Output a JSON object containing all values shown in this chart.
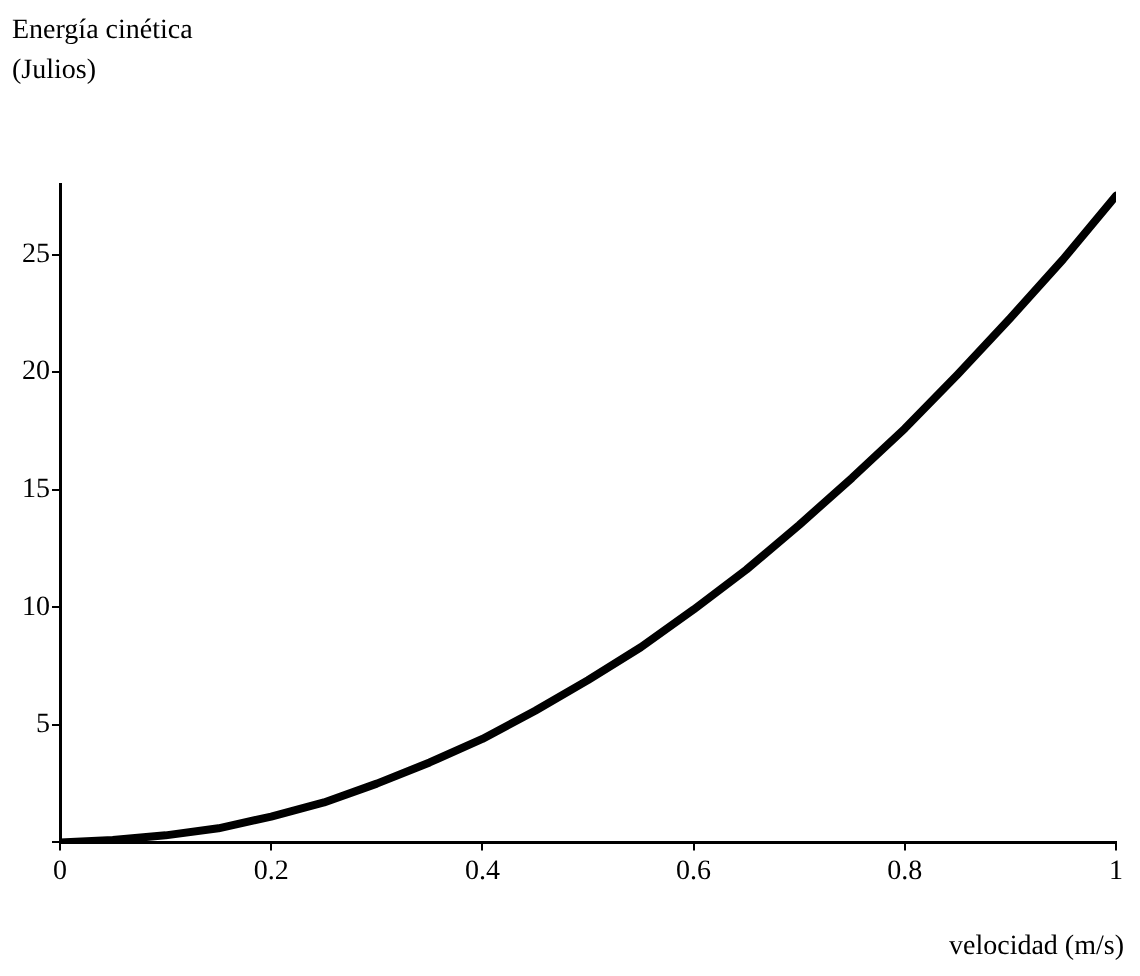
{
  "chart_data": {
    "type": "line",
    "xlabel": "velocidad (m/s)",
    "ylabel": "Energía cinética\n(Julios)",
    "x": [
      0,
      0.05,
      0.1,
      0.15,
      0.2,
      0.25,
      0.3,
      0.35,
      0.4,
      0.45,
      0.5,
      0.55,
      0.6,
      0.65,
      0.7,
      0.75,
      0.8,
      0.85,
      0.9,
      0.95,
      1
    ],
    "series": [
      {
        "color": "#000000",
        "values": [
          0,
          0.1,
          0.3,
          0.6,
          1.1,
          1.7,
          2.5,
          3.4,
          4.4,
          5.6,
          6.9,
          8.3,
          9.9,
          11.6,
          13.5,
          15.5,
          17.6,
          19.9,
          22.3,
          24.8,
          27.5
        ]
      }
    ],
    "xlim": [
      0,
      1
    ],
    "xticks": [
      0,
      0.2,
      0.4,
      0.6,
      0.8,
      1
    ],
    "ylim": [
      0,
      28
    ],
    "yticks": [
      {
        "value": 0,
        "label": null
      },
      5,
      10,
      15,
      20,
      25
    ],
    "grid": false,
    "legend": false,
    "marker": "none",
    "line_style": "solid"
  }
}
